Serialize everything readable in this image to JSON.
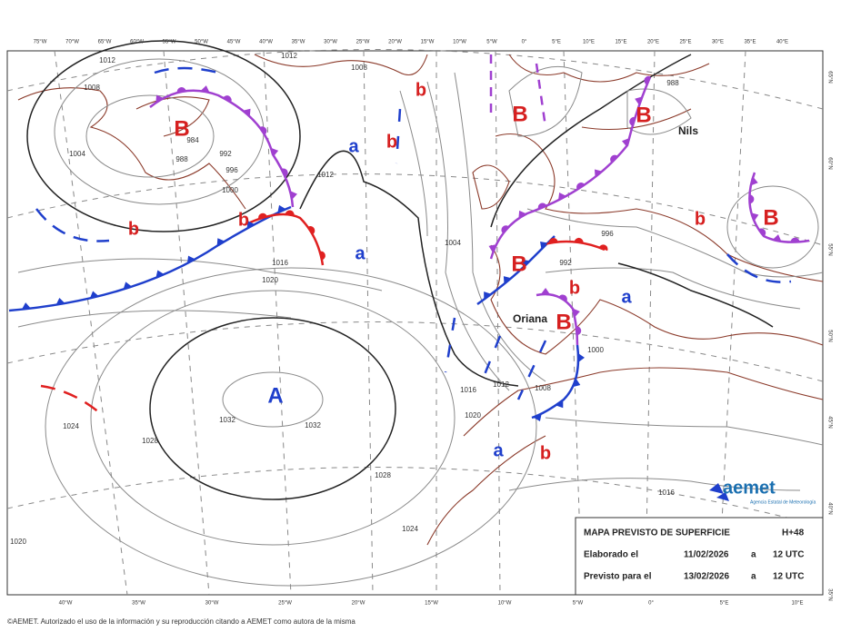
{
  "top_lon_labels": [
    "75°W",
    "70°W",
    "65°W",
    "60°W",
    "55°W",
    "50°W",
    "45°W",
    "40°W",
    "35°W",
    "30°W",
    "25°W",
    "20°W",
    "15°W",
    "10°W",
    "5°W",
    "0°",
    "5°E",
    "10°E",
    "15°E",
    "20°E",
    "25°E",
    "30°E",
    "35°E",
    "40°E"
  ],
  "bottom_lon_labels": [
    "40°W",
    "35°W",
    "30°W",
    "25°W",
    "20°W",
    "15°W",
    "10°W",
    "5°W",
    "0°",
    "5°E",
    "10°E"
  ],
  "lat_labels": [
    "65°N",
    "60°N",
    "55°N",
    "50°N",
    "45°N",
    "40°N",
    "35°N"
  ],
  "centers": [
    {
      "label": "B",
      "color": "#d62020"
    },
    {
      "label": "B",
      "color": "#d62020"
    },
    {
      "label": "B",
      "color": "#d62020"
    },
    {
      "label": "B",
      "color": "#d62020"
    },
    {
      "label": "B",
      "color": "#d62020"
    },
    {
      "label": "B",
      "color": "#d62020"
    },
    {
      "label": "b",
      "color": "#d62020"
    },
    {
      "label": "b",
      "color": "#d62020"
    },
    {
      "label": "b",
      "color": "#d62020"
    },
    {
      "label": "b",
      "color": "#d62020"
    },
    {
      "label": "b",
      "color": "#d62020"
    },
    {
      "label": "b",
      "color": "#d62020"
    },
    {
      "label": "b",
      "color": "#d62020"
    },
    {
      "label": "a",
      "color": "#1f3fcc"
    },
    {
      "label": "a",
      "color": "#1f3fcc"
    },
    {
      "label": "a",
      "color": "#1f3fcc"
    },
    {
      "label": "a",
      "color": "#1f3fcc"
    },
    {
      "label": "A",
      "color": "#1f3fcc"
    }
  ],
  "storm_names": [
    "Nils",
    "Oriana"
  ],
  "isobar_labels": [
    "1012",
    "1008",
    "1012",
    "1004",
    "996",
    "992",
    "988",
    "984",
    "1000",
    "1012",
    "1016",
    "1020",
    "1028",
    "1032",
    "1032",
    "1028",
    "1024",
    "1024",
    "1020",
    "1016",
    "1012",
    "1008",
    "1004",
    "1000",
    "996",
    "992",
    "988",
    "1016",
    "1008",
    "1020"
  ],
  "info_box": {
    "title": "MAPA PREVISTO DE SUPERFICIE",
    "horizon": "H+48",
    "rows": [
      [
        "Elaborado el",
        "11/02/2026",
        "a",
        "12 UTC"
      ],
      [
        "Previsto para el",
        "13/02/2026",
        "a",
        "12 UTC"
      ]
    ]
  },
  "logo": {
    "name": "aemet",
    "subtitle": "Agencia Estatal de Meteorología"
  },
  "footer": "©AEMET. Autorizado el uso de la información y su reproducción citando a AEMET como autora de la misma"
}
